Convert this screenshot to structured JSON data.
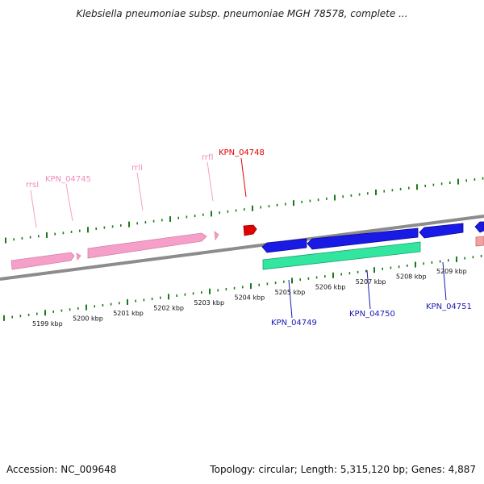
{
  "title": "Klebsiella pneumoniae subsp. pneumoniae MGH 78578, complete ...",
  "footer": {
    "accession": "Accession: NC_009648",
    "summary": "Topology: circular; Length: 5,315,120 bp; Genes: 4,887"
  },
  "colors": {
    "rna": "#f4a0c8",
    "rna_label": "#f08cbc",
    "highlight": "#e00000",
    "cds_minus": "#1a1ae6",
    "cds_plus": "#33e6a0",
    "label_blue": "#1a1ab4",
    "backbone": "#8c8c8c",
    "tick": "#1a7a1a"
  },
  "scale": {
    "unit": "kbp",
    "tick_labels": [
      "5199 kbp",
      "5200 kbp",
      "5201 kbp",
      "5202 kbp",
      "5203 kbp",
      "5204 kbp",
      "5205 kbp",
      "5206 kbp",
      "5207 kbp",
      "5208 kbp",
      "5209 kbp"
    ]
  },
  "labels": {
    "rrsI": "rrsI",
    "KPN_04745": "KPN_04745",
    "rrlI": "rrlI",
    "rrfI": "rrfI",
    "KPN_04748": "KPN_04748",
    "KPN_04749": "KPN_04749",
    "KPN_04750": "KPN_04750",
    "KPN_04751": "KPN_04751"
  }
}
